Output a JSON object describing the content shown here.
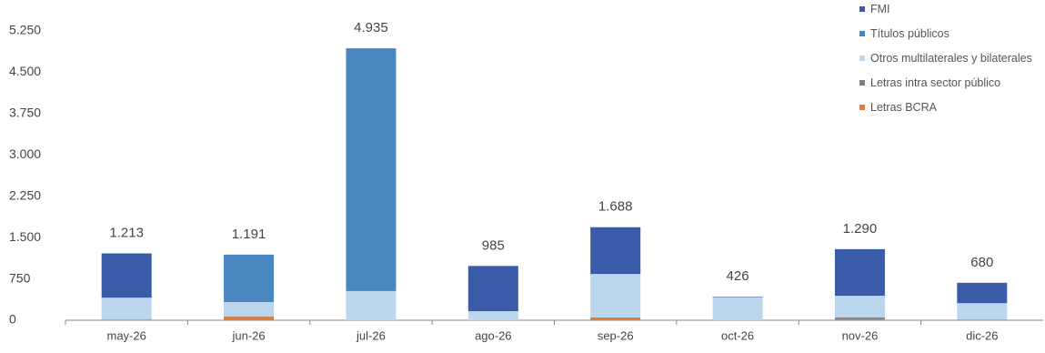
{
  "chart_data": {
    "type": "stacked-bar",
    "categories": [
      "may-26",
      "jun-26",
      "jul-26",
      "ago-26",
      "sep-26",
      "oct-26",
      "nov-26",
      "dic-26"
    ],
    "series": [
      {
        "name": "Letras BCRA",
        "color": "#e07b39",
        "values": [
          0,
          60,
          0,
          0,
          40,
          0,
          20,
          0
        ]
      },
      {
        "name": "Letras intra sector público",
        "color": "#7f7f7f",
        "values": [
          10,
          10,
          0,
          0,
          10,
          0,
          30,
          10
        ]
      },
      {
        "name": "Otros multilaterales y bilaterales",
        "color": "#bcd6ee",
        "values": [
          400,
          260,
          530,
          165,
          790,
          416,
          395,
          300
        ]
      },
      {
        "name": "Títulos públicos",
        "color": "#4a86c0",
        "values": [
          0,
          861,
          4405,
          0,
          0,
          0,
          0,
          0
        ]
      },
      {
        "name": "FMI",
        "color": "#3a5ba8",
        "values": [
          803,
          0,
          0,
          820,
          848,
          10,
          845,
          370
        ]
      }
    ],
    "totals": {
      "values": [
        1213,
        1191,
        4935,
        985,
        1688,
        426,
        1290,
        680
      ],
      "value_labels": [
        "1.213",
        "1.191",
        "4.935",
        "985",
        "1.688",
        "426",
        "1.290",
        "680"
      ]
    },
    "ylim": [
      0,
      5250
    ],
    "yticks": [
      0,
      750,
      {
        "value": 1500,
        "label": "1.500"
      },
      {
        "value": 2250,
        "label": "2.250"
      },
      {
        "value": 3000,
        "label": "3.000"
      },
      {
        "value": 3750,
        "label": "3.750"
      },
      {
        "value": 4500,
        "label": "4.500"
      },
      {
        "value": 5250,
        "label": "5.250"
      }
    ],
    "grid": false,
    "legend_order": [
      4,
      3,
      2,
      1,
      0
    ]
  }
}
